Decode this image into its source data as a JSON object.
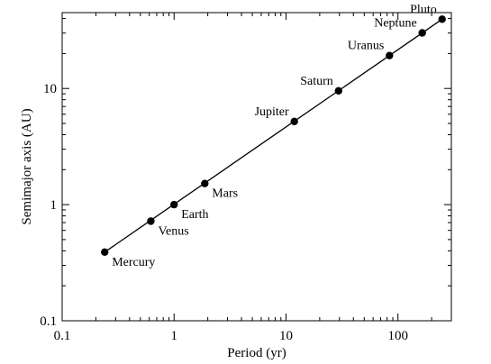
{
  "chart_data": {
    "type": "scatter",
    "title": "",
    "xlabel": "Period (yr)",
    "ylabel": "Semimajor axis (AU)",
    "xscale": "log",
    "yscale": "log",
    "xlim": [
      0.1,
      300
    ],
    "ylim": [
      0.1,
      45
    ],
    "grid": false,
    "legend": "none",
    "x_ticks": [
      {
        "value": 0.1,
        "label": "0.1"
      },
      {
        "value": 1,
        "label": "1"
      },
      {
        "value": 10,
        "label": "10"
      },
      {
        "value": 100,
        "label": "100"
      }
    ],
    "y_ticks": [
      {
        "value": 0.1,
        "label": "0.1"
      },
      {
        "value": 1,
        "label": "1"
      },
      {
        "value": 10,
        "label": "10"
      }
    ],
    "points": [
      {
        "name": "Mercury",
        "period": 0.24,
        "semimajor_axis": 0.39,
        "label_side": "below-right"
      },
      {
        "name": "Venus",
        "period": 0.62,
        "semimajor_axis": 0.72,
        "label_side": "below-right"
      },
      {
        "name": "Earth",
        "period": 1.0,
        "semimajor_axis": 1.0,
        "label_side": "below-right"
      },
      {
        "name": "Mars",
        "period": 1.88,
        "semimajor_axis": 1.52,
        "label_side": "below-right"
      },
      {
        "name": "Jupiter",
        "period": 11.86,
        "semimajor_axis": 5.2,
        "label_side": "upper-left"
      },
      {
        "name": "Saturn",
        "period": 29.46,
        "semimajor_axis": 9.54,
        "label_side": "upper-left"
      },
      {
        "name": "Uranus",
        "period": 84.0,
        "semimajor_axis": 19.2,
        "label_side": "upper-left"
      },
      {
        "name": "Neptune",
        "period": 164.8,
        "semimajor_axis": 30.1,
        "label_side": "upper-left"
      },
      {
        "name": "Pluto",
        "period": 248.0,
        "semimajor_axis": 39.5,
        "label_side": "upper-left"
      }
    ],
    "fit_line": {
      "x": [
        0.24,
        248.0
      ],
      "y": [
        0.39,
        39.5
      ]
    },
    "colors": {
      "marker": "#000000",
      "line": "#000000",
      "axes": "#000000"
    }
  }
}
